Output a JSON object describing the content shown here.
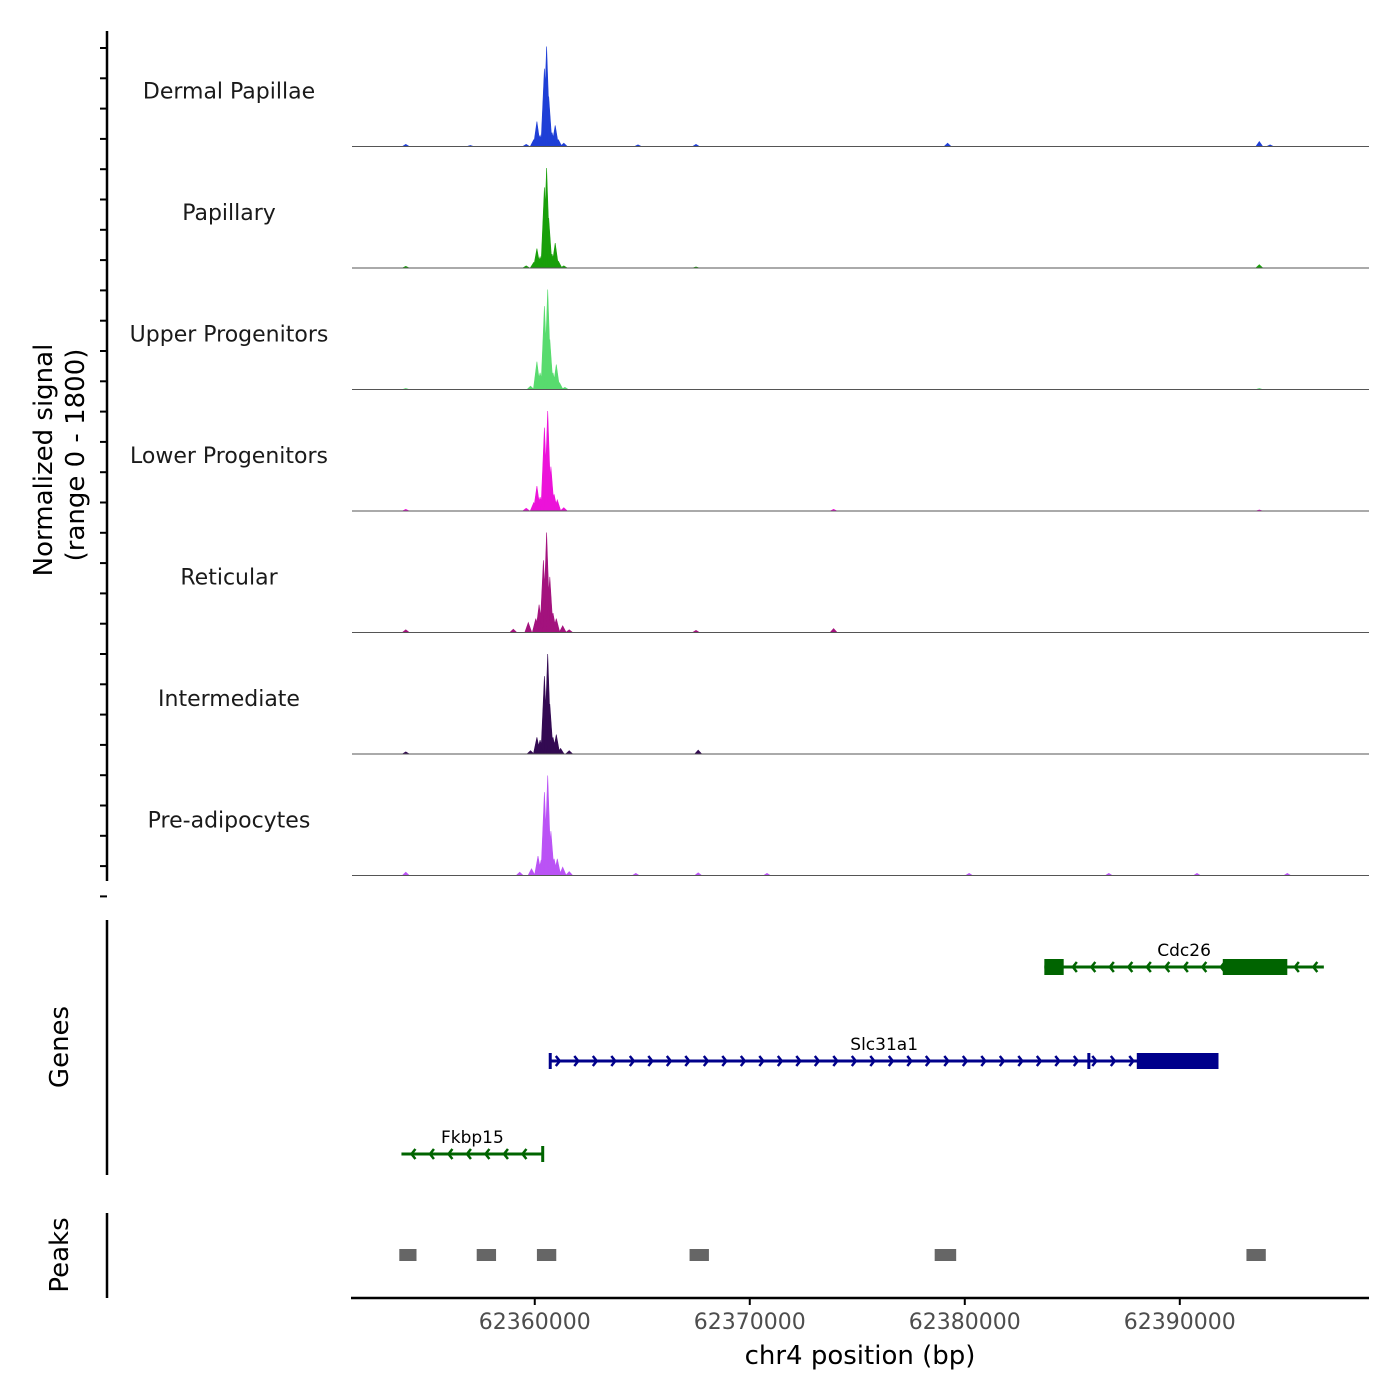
{
  "chart_data": {
    "type": "coverage",
    "title": "",
    "chromosome": "chr4",
    "xlabel": "chr4 position (bp)",
    "xlim": [
      62351500,
      62398800
    ],
    "xticks": [
      62360000,
      62370000,
      62380000,
      62390000
    ],
    "xtick_labels": [
      "62360000",
      "62370000",
      "62380000",
      "62390000"
    ],
    "ylabel_line1": "Normalized signal",
    "ylabel_line2": "(range 0 - 1800)",
    "ylim": [
      0,
      1800
    ],
    "genes_label": "Genes",
    "peaks_label": "Peaks",
    "tracks": [
      {
        "name": "Dermal Papillae",
        "color": "#1f3fd6",
        "signal": [
          [
            62354000,
            40
          ],
          [
            62357000,
            20
          ],
          [
            62359600,
            40
          ],
          [
            62359950,
            120
          ],
          [
            62360100,
            450
          ],
          [
            62360250,
            200
          ],
          [
            62360450,
            1400
          ],
          [
            62360550,
            1800
          ],
          [
            62360650,
            900
          ],
          [
            62360800,
            250
          ],
          [
            62360950,
            380
          ],
          [
            62361100,
            120
          ],
          [
            62361350,
            60
          ],
          [
            62364800,
            30
          ],
          [
            62367500,
            40
          ],
          [
            62379200,
            60
          ],
          [
            62393700,
            90
          ],
          [
            62394200,
            30
          ]
        ]
      },
      {
        "name": "Papillary",
        "color": "#199f0a",
        "signal": [
          [
            62354000,
            30
          ],
          [
            62359600,
            40
          ],
          [
            62359950,
            100
          ],
          [
            62360100,
            350
          ],
          [
            62360250,
            200
          ],
          [
            62360450,
            1450
          ],
          [
            62360550,
            1800
          ],
          [
            62360650,
            900
          ],
          [
            62360800,
            250
          ],
          [
            62360950,
            450
          ],
          [
            62361100,
            120
          ],
          [
            62361350,
            40
          ],
          [
            62367500,
            20
          ],
          [
            62393700,
            60
          ]
        ]
      },
      {
        "name": "Upper Progenitors",
        "color": "#58db6e",
        "signal": [
          [
            62354000,
            20
          ],
          [
            62359800,
            60
          ],
          [
            62360100,
            500
          ],
          [
            62360250,
            300
          ],
          [
            62360450,
            1500
          ],
          [
            62360600,
            1800
          ],
          [
            62360700,
            900
          ],
          [
            62360850,
            300
          ],
          [
            62361000,
            450
          ],
          [
            62361150,
            120
          ],
          [
            62361400,
            40
          ],
          [
            62393700,
            20
          ]
        ]
      },
      {
        "name": "Lower Progenitors",
        "color": "#ec12d9",
        "signal": [
          [
            62354000,
            30
          ],
          [
            62359600,
            50
          ],
          [
            62359950,
            150
          ],
          [
            62360100,
            450
          ],
          [
            62360250,
            250
          ],
          [
            62360450,
            1500
          ],
          [
            62360600,
            1800
          ],
          [
            62360750,
            800
          ],
          [
            62360900,
            300
          ],
          [
            62361050,
            200
          ],
          [
            62361350,
            60
          ],
          [
            62373900,
            30
          ],
          [
            62393700,
            20
          ]
        ]
      },
      {
        "name": "Reticular",
        "color": "#a3127d",
        "signal": [
          [
            62354000,
            50
          ],
          [
            62359000,
            60
          ],
          [
            62359700,
            180
          ],
          [
            62360050,
            250
          ],
          [
            62360200,
            500
          ],
          [
            62360400,
            1300
          ],
          [
            62360550,
            1800
          ],
          [
            62360700,
            1000
          ],
          [
            62360850,
            350
          ],
          [
            62361000,
            250
          ],
          [
            62361300,
            120
          ],
          [
            62361600,
            50
          ],
          [
            62367500,
            40
          ],
          [
            62373900,
            70
          ]
        ]
      },
      {
        "name": "Intermediate",
        "color": "#330a52",
        "signal": [
          [
            62354000,
            40
          ],
          [
            62359800,
            60
          ],
          [
            62360100,
            300
          ],
          [
            62360250,
            250
          ],
          [
            62360450,
            1400
          ],
          [
            62360600,
            1800
          ],
          [
            62360700,
            900
          ],
          [
            62360850,
            300
          ],
          [
            62361000,
            350
          ],
          [
            62361200,
            100
          ],
          [
            62361600,
            60
          ],
          [
            62367600,
            70
          ]
        ]
      },
      {
        "name": "Pre-adipocytes",
        "color": "#ba53f5",
        "signal": [
          [
            62354000,
            60
          ],
          [
            62359300,
            60
          ],
          [
            62359850,
            120
          ],
          [
            62360150,
            350
          ],
          [
            62360300,
            280
          ],
          [
            62360450,
            1500
          ],
          [
            62360600,
            1800
          ],
          [
            62360750,
            800
          ],
          [
            62360900,
            300
          ],
          [
            62361050,
            300
          ],
          [
            62361300,
            150
          ],
          [
            62361600,
            70
          ],
          [
            62364700,
            40
          ],
          [
            62367600,
            50
          ],
          [
            62370800,
            40
          ],
          [
            62380200,
            40
          ],
          [
            62386700,
            40
          ],
          [
            62390800,
            40
          ],
          [
            62395000,
            40
          ]
        ]
      }
    ],
    "genes": [
      {
        "name": "Cdc26",
        "strand": "-",
        "color": "#006400",
        "row": 0,
        "start": 62383700,
        "end": 62396700,
        "exons": [
          [
            62383700,
            62384600
          ],
          [
            62392000,
            62395000
          ]
        ]
      },
      {
        "name": "Slc31a1",
        "strand": "+",
        "color": "#00008b",
        "row": 1,
        "start": 62360700,
        "end": 62391800,
        "exons": [
          [
            62360650,
            62360750
          ],
          [
            62385700,
            62385800
          ],
          [
            62388000,
            62391800
          ]
        ]
      },
      {
        "name": "Fkbp15",
        "strand": "-",
        "color": "#006400",
        "row": 2,
        "start": 62353800,
        "end": 62360400,
        "exons": [
          [
            62360300,
            62360400
          ]
        ]
      }
    ],
    "peaks": [
      [
        62353700,
        62354500
      ],
      [
        62357300,
        62358200
      ],
      [
        62360100,
        62361000
      ],
      [
        62367200,
        62368100
      ],
      [
        62378600,
        62379600
      ],
      [
        62393100,
        62394000
      ]
    ]
  }
}
